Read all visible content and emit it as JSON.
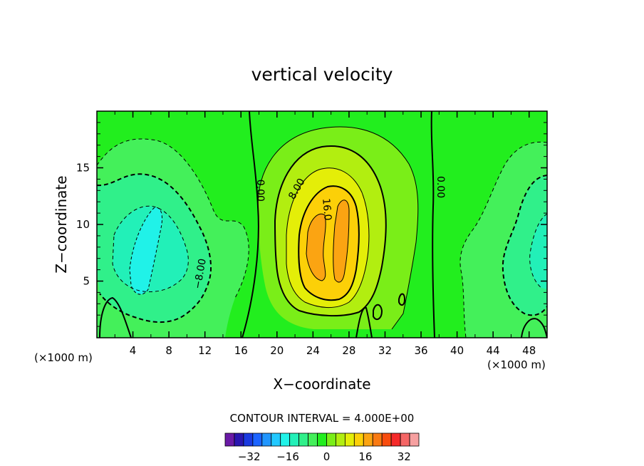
{
  "chart_data": {
    "type": "contour",
    "title": "vertical velocity",
    "xlabel": "X−coordinate",
    "ylabel": "Z−coordinate",
    "x_unit": "(×1000 m)",
    "xlim": [
      0,
      50
    ],
    "ylim": [
      0,
      20
    ],
    "x_ticks": [
      4,
      8,
      12,
      16,
      20,
      24,
      28,
      32,
      36,
      40,
      44,
      48
    ],
    "y_ticks": [
      5,
      10,
      15
    ],
    "contour_interval_text": "CONTOUR INTERVAL = 4.000E+00",
    "contour_labels": [
      {
        "text": "0.00",
        "x": 17.8,
        "y": 13
      },
      {
        "text": "8.00",
        "x": 22.5,
        "y": 13
      },
      {
        "text": "16.0",
        "x": 25.2,
        "y": 11.3
      },
      {
        "text": "0.00",
        "x": 37.8,
        "y": 13.3
      },
      {
        "text": "−8.00",
        "x": 11.8,
        "y": 5.6
      }
    ],
    "colorbar": {
      "tick_labels": [
        "−32",
        "−16",
        "0",
        "16",
        "32"
      ],
      "tick_values": [
        -32,
        -16,
        0,
        16,
        32
      ],
      "levels": [
        -40,
        -36,
        -32,
        -28,
        -24,
        -20,
        -16,
        -12,
        -8,
        -4,
        0,
        4,
        8,
        12,
        16,
        20,
        24,
        28,
        32,
        36,
        40
      ],
      "colors": [
        "#6a1aa6",
        "#2a16b0",
        "#1a3ae0",
        "#1c64ff",
        "#2196ff",
        "#22c8ff",
        "#20f2e8",
        "#22f0b8",
        "#30f08a",
        "#44f05a",
        "#22ee1e",
        "#7aee18",
        "#b2ee10",
        "#e4ee08",
        "#fcd008",
        "#fba412",
        "#f97a12",
        "#f84c0e",
        "#f52a2a",
        "#f56666",
        "#f6a0a0"
      ]
    },
    "grid": false,
    "legend": "colorbar-bottom"
  }
}
